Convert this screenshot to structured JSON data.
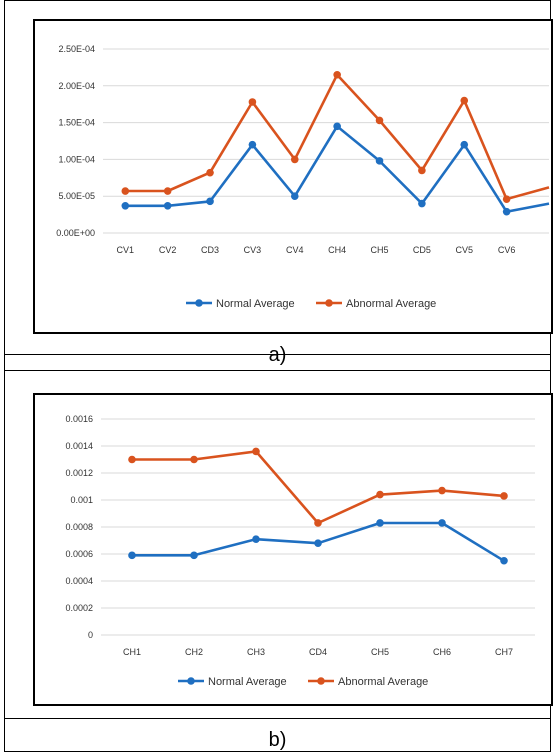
{
  "figure": {
    "caption_a": "a)",
    "caption_b": "b)"
  },
  "colors": {
    "normal": "#1f6fc1",
    "abnormal": "#d9531e",
    "grid": "#d9d9d9"
  },
  "chart_data": [
    {
      "type": "line",
      "categories": [
        "CV1",
        "CV2",
        "CD3",
        "CV3",
        "CV4",
        "CH4",
        "CH5",
        "CD5",
        "CV5",
        "CV6",
        ""
      ],
      "yticks": [
        "0.00E+00",
        "5.00E-05",
        "1.00E-04",
        "1.50E-04",
        "2.00E-04",
        "2.50E-04"
      ],
      "ylim": [
        0,
        0.00025
      ],
      "grid": true,
      "legend": "bottom",
      "series": [
        {
          "name": "Normal Average",
          "values": [
            3.7e-05,
            3.7e-05,
            4.3e-05,
            0.00012,
            5e-05,
            0.000145,
            9.8e-05,
            4e-05,
            0.00012,
            2.9e-05,
            4e-05
          ]
        },
        {
          "name": "Abnormal Average",
          "values": [
            5.7e-05,
            5.7e-05,
            8.2e-05,
            0.000178,
            0.0001,
            0.000215,
            0.000153,
            8.5e-05,
            0.00018,
            4.6e-05,
            6.2e-05
          ]
        }
      ]
    },
    {
      "type": "line",
      "categories": [
        "CH1",
        "CH2",
        "CH3",
        "CD4",
        "CH5",
        "CH6",
        "CH7"
      ],
      "yticks": [
        "0",
        "0.0002",
        "0.0004",
        "0.0006",
        "0.0008",
        "0.001",
        "0.0012",
        "0.0014",
        "0.0016"
      ],
      "ylim": [
        0,
        0.0016
      ],
      "grid": true,
      "legend": "bottom",
      "series": [
        {
          "name": "Normal Average",
          "values": [
            0.00059,
            0.00059,
            0.00071,
            0.00068,
            0.00083,
            0.00083,
            0.00055
          ]
        },
        {
          "name": "Abnormal Average",
          "values": [
            0.0013,
            0.0013,
            0.00136,
            0.00083,
            0.00104,
            0.00107,
            0.00103
          ]
        }
      ]
    }
  ]
}
